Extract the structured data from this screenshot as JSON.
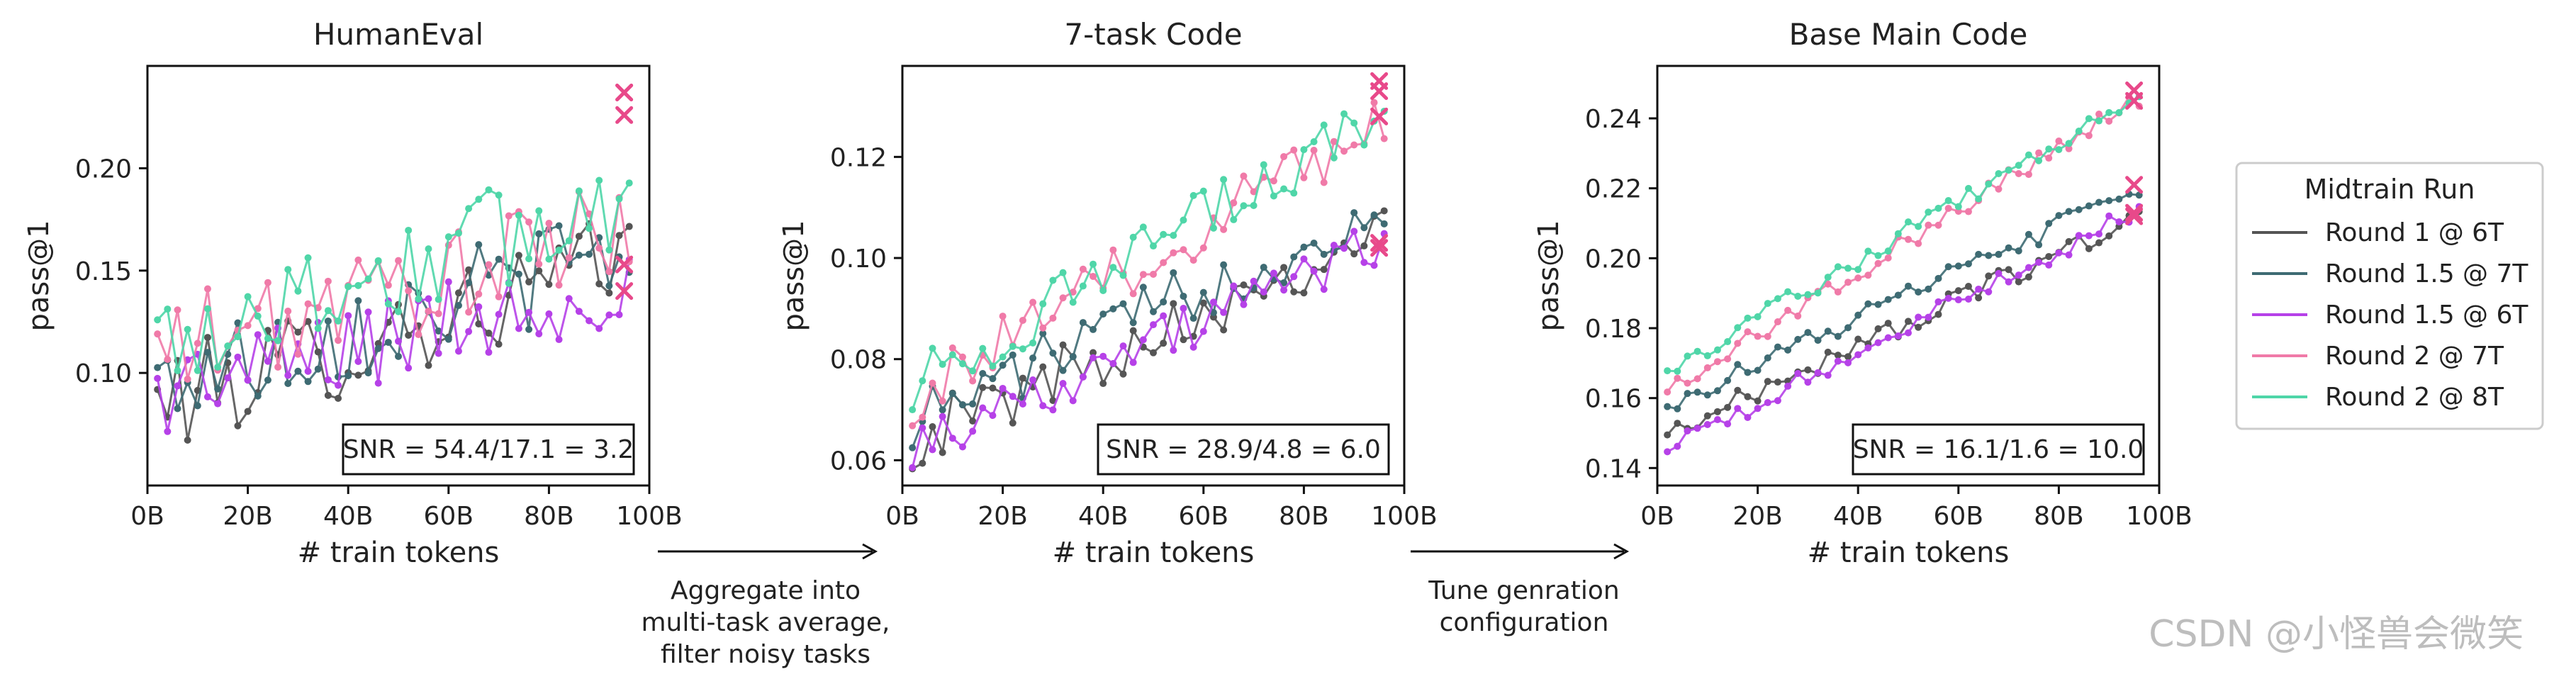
{
  "chart_data": [
    {
      "type": "line",
      "title": "HumanEval",
      "xlabel": "# train tokens",
      "ylabel": "pass@1",
      "xlim": [
        0,
        100
      ],
      "ylim": [
        0.045,
        0.25
      ],
      "x_ticks": [
        0,
        20,
        40,
        60,
        80,
        100
      ],
      "x_tick_labels": [
        "0B",
        "20B",
        "40B",
        "60B",
        "80B",
        "100B"
      ],
      "y_ticks": [
        0.1,
        0.15,
        0.2
      ],
      "y_tick_labels": [
        "0.10",
        "0.15",
        "0.20"
      ],
      "snr": "SNR = 54.4/17.1 = 3.2",
      "series": [
        {
          "name": "Round 1 @ 6T",
          "color": "#555555",
          "base": 0.085,
          "end": 0.155,
          "noise": 0.025,
          "final": 0.14
        },
        {
          "name": "Round 1.5 @ 7T",
          "color": "#3e6b73",
          "base": 0.095,
          "end": 0.16,
          "noise": 0.025,
          "final": 0.226
        },
        {
          "name": "Round 1.5 @ 6T",
          "color": "#b641e8",
          "base": 0.09,
          "end": 0.145,
          "noise": 0.022,
          "final": 0.153
        },
        {
          "name": "Round 2 @ 7T",
          "color": "#f07aa8",
          "base": 0.11,
          "end": 0.17,
          "noise": 0.025,
          "final": 0.237
        },
        {
          "name": "Round 2 @ 8T",
          "color": "#4fd6a8",
          "base": 0.115,
          "end": 0.185,
          "noise": 0.028,
          "final": 0.237
        }
      ]
    },
    {
      "type": "line",
      "title": "7-task Code",
      "xlabel": "# train tokens",
      "ylabel": "pass@1",
      "xlim": [
        0,
        100
      ],
      "ylim": [
        0.055,
        0.138
      ],
      "x_ticks": [
        0,
        20,
        40,
        60,
        80,
        100
      ],
      "x_tick_labels": [
        "0B",
        "20B",
        "40B",
        "60B",
        "80B",
        "100B"
      ],
      "y_ticks": [
        0.06,
        0.08,
        0.1,
        0.12
      ],
      "y_tick_labels": [
        "0.06",
        "0.08",
        "0.10",
        "0.12"
      ],
      "snr": "SNR = 28.9/4.8 = 6.0",
      "series": [
        {
          "name": "Round 1 @ 6T",
          "color": "#555555",
          "base": 0.064,
          "end": 0.106,
          "noise": 0.006,
          "final": 0.103
        },
        {
          "name": "Round 1.5 @ 7T",
          "color": "#3e6b73",
          "base": 0.068,
          "end": 0.11,
          "noise": 0.006,
          "final": 0.128
        },
        {
          "name": "Round 1.5 @ 6T",
          "color": "#b641e8",
          "base": 0.063,
          "end": 0.103,
          "noise": 0.005,
          "final": 0.102
        },
        {
          "name": "Round 2 @ 7T",
          "color": "#f07aa8",
          "base": 0.072,
          "end": 0.128,
          "noise": 0.006,
          "final": 0.133
        },
        {
          "name": "Round 2 @ 8T",
          "color": "#4fd6a8",
          "base": 0.075,
          "end": 0.128,
          "noise": 0.006,
          "final": 0.135
        }
      ]
    },
    {
      "type": "line",
      "title": "Base Main Code",
      "xlabel": "# train tokens",
      "ylabel": "pass@1",
      "xlim": [
        0,
        100
      ],
      "ylim": [
        0.135,
        0.255
      ],
      "x_ticks": [
        0,
        20,
        40,
        60,
        80,
        100
      ],
      "x_tick_labels": [
        "0B",
        "20B",
        "40B",
        "60B",
        "80B",
        "100B"
      ],
      "y_ticks": [
        0.14,
        0.16,
        0.18,
        0.2,
        0.22,
        0.24
      ],
      "y_tick_labels": [
        "0.14",
        "0.16",
        "0.18",
        "0.20",
        "0.22",
        "0.24"
      ],
      "snr": "SNR = 16.1/1.6 = 10.0",
      "series": [
        {
          "name": "Round 1 @ 6T",
          "color": "#555555",
          "base": 0.15,
          "end": 0.212,
          "noise": 0.003,
          "final": 0.213
        },
        {
          "name": "Round 1.5 @ 7T",
          "color": "#3e6b73",
          "base": 0.158,
          "end": 0.22,
          "noise": 0.003,
          "final": 0.221
        },
        {
          "name": "Round 1.5 @ 6T",
          "color": "#b641e8",
          "base": 0.145,
          "end": 0.214,
          "noise": 0.003,
          "final": 0.212
        },
        {
          "name": "Round 2 @ 7T",
          "color": "#f07aa8",
          "base": 0.162,
          "end": 0.246,
          "noise": 0.003,
          "final": 0.248
        },
        {
          "name": "Round 2 @ 8T",
          "color": "#4fd6a8",
          "base": 0.168,
          "end": 0.246,
          "noise": 0.003,
          "final": 0.245
        }
      ]
    }
  ],
  "legend": {
    "title": "Midtrain Run",
    "entries": [
      "Round 1 @ 6T",
      "Round 1.5 @ 7T",
      "Round 1.5 @ 6T",
      "Round 2 @ 7T",
      "Round 2 @ 8T"
    ],
    "colors": [
      "#555555",
      "#3e6b73",
      "#b641e8",
      "#f07aa8",
      "#4fd6a8"
    ],
    "placement": "right"
  },
  "final_marker_color": "#e8498a",
  "arrows": [
    {
      "lines": [
        "Aggregate into",
        "multi-task average,",
        "filter noisy tasks"
      ]
    },
    {
      "lines": [
        "Tune genration",
        "configuration"
      ]
    }
  ],
  "watermark": "CSDN @小怪兽会微笑"
}
